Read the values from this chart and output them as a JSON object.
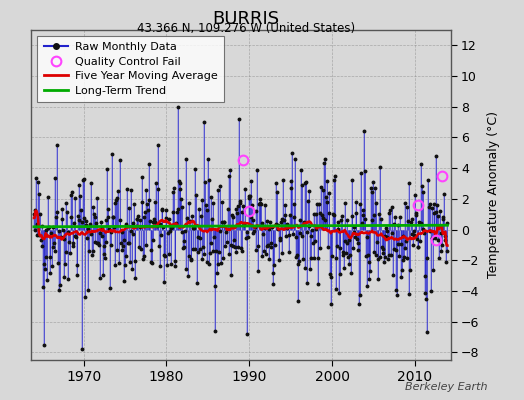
{
  "title": "BURRIS",
  "subtitle": "43.366 N, 109.276 W (United States)",
  "ylabel": "Temperature Anomaly (°C)",
  "watermark": "Berkeley Earth",
  "start_year": 1964,
  "end_year": 2014,
  "ylim": [
    -8.5,
    13
  ],
  "yticks": [
    -8,
    -6,
    -4,
    -2,
    0,
    2,
    4,
    6,
    8,
    10,
    12
  ],
  "xticks": [
    1970,
    1980,
    1990,
    2000,
    2010
  ],
  "bg_color": "#d8d8d8",
  "plot_bg_color": "#d8d8d8",
  "line_color": "#2222cc",
  "line_color_light": "#8888dd",
  "ma_color": "#dd0000",
  "trend_color": "#00aa00",
  "qc_color": "#ff44ff",
  "seed": 42
}
